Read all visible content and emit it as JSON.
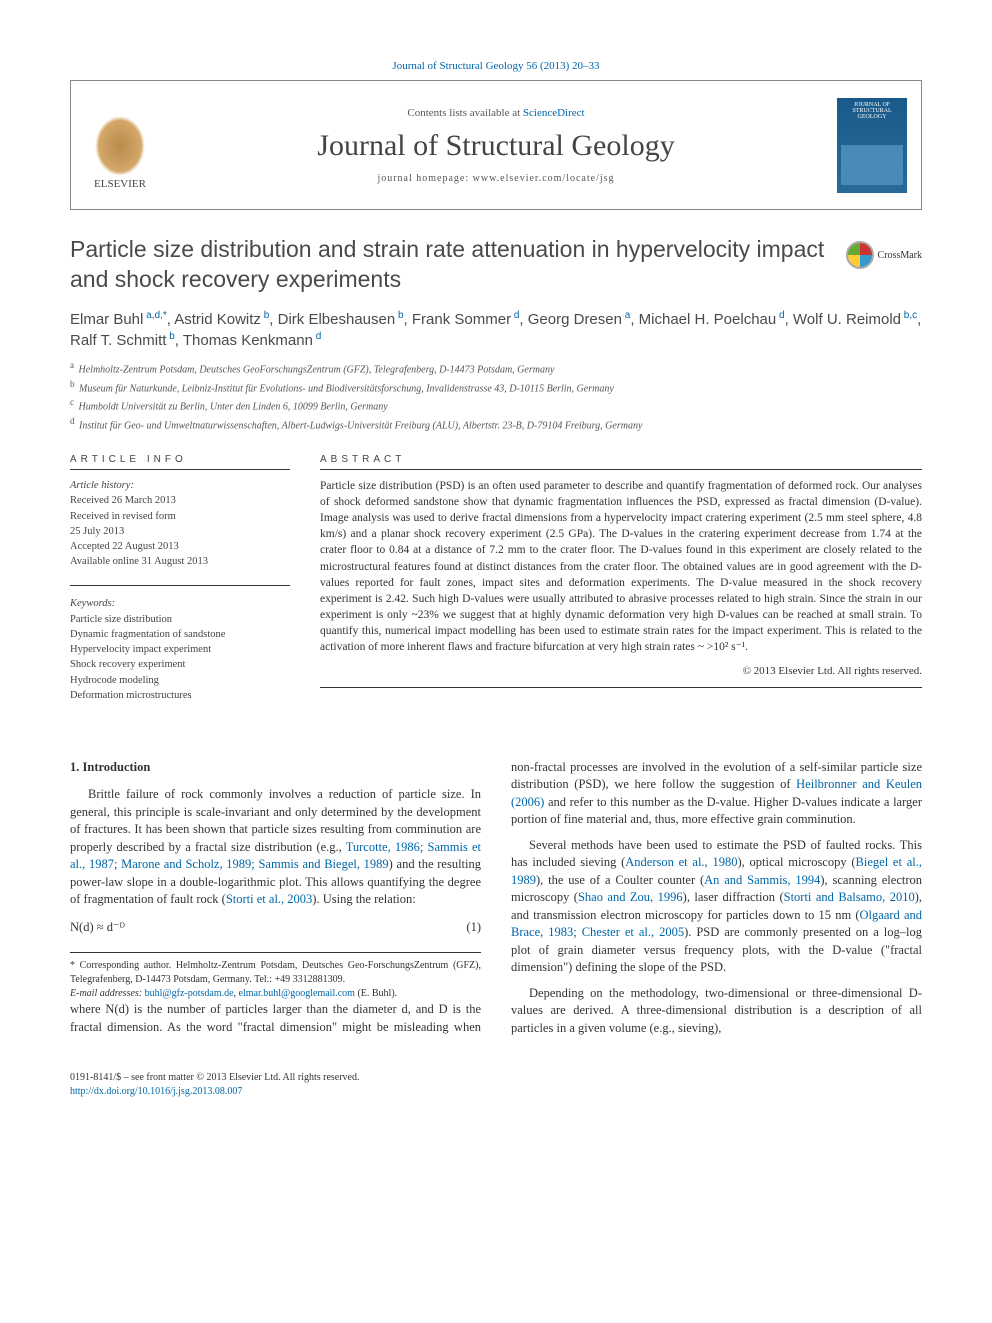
{
  "journal_ref": "Journal of Structural Geology 56 (2013) 20–33",
  "header": {
    "contents_prefix": "Contents lists available at ",
    "contents_link": "ScienceDirect",
    "journal_name": "Journal of Structural Geology",
    "homepage_prefix": "journal homepage: ",
    "homepage_url": "www.elsevier.com/locate/jsg",
    "publisher": "ELSEVIER",
    "cover_top": "JOURNAL OF STRUCTURAL GEOLOGY"
  },
  "crossmark_label": "CrossMark",
  "title": "Particle size distribution and strain rate attenuation in hypervelocity impact and shock recovery experiments",
  "authors": [
    {
      "name": "Elmar Buhl",
      "marks": "a,d,*"
    },
    {
      "name": "Astrid Kowitz",
      "marks": "b"
    },
    {
      "name": "Dirk Elbeshausen",
      "marks": "b"
    },
    {
      "name": "Frank Sommer",
      "marks": "d"
    },
    {
      "name": "Georg Dresen",
      "marks": "a"
    },
    {
      "name": "Michael H. Poelchau",
      "marks": "d"
    },
    {
      "name": "Wolf U. Reimold",
      "marks": "b,c"
    },
    {
      "name": "Ralf T. Schmitt",
      "marks": "b"
    },
    {
      "name": "Thomas Kenkmann",
      "marks": "d"
    }
  ],
  "affiliations": [
    {
      "mark": "a",
      "text": "Helmholtz-Zentrum Potsdam, Deutsches GeoForschungsZentrum (GFZ), Telegrafenberg, D-14473 Potsdam, Germany"
    },
    {
      "mark": "b",
      "text": "Museum für Naturkunde, Leibniz-Institut für Evolutions- und Biodiversitätsforschung, Invalidenstrasse 43, D-10115 Berlin, Germany"
    },
    {
      "mark": "c",
      "text": "Humboldt Universität zu Berlin, Unter den Linden 6, 10099 Berlin, Germany"
    },
    {
      "mark": "d",
      "text": "Institut für Geo- und Umweltnaturwissenschaften, Albert-Ludwigs-Universität Freiburg (ALU), Albertstr. 23-B, D-79104 Freiburg, Germany"
    }
  ],
  "article_info_label": "ARTICLE INFO",
  "abstract_label": "ABSTRACT",
  "history": {
    "heading": "Article history:",
    "received": "Received 26 March 2013",
    "revised1": "Received in revised form",
    "revised2": "25 July 2013",
    "accepted": "Accepted 22 August 2013",
    "online": "Available online 31 August 2013"
  },
  "keywords": {
    "heading": "Keywords:",
    "items": [
      "Particle size distribution",
      "Dynamic fragmentation of sandstone",
      "Hypervelocity impact experiment",
      "Shock recovery experiment",
      "Hydrocode modeling",
      "Deformation microstructures"
    ]
  },
  "abstract": "Particle size distribution (PSD) is an often used parameter to describe and quantify fragmentation of deformed rock. Our analyses of shock deformed sandstone show that dynamic fragmentation influences the PSD, expressed as fractal dimension (D-value). Image analysis was used to derive fractal dimensions from a hypervelocity impact cratering experiment (2.5 mm steel sphere, 4.8 km/s) and a planar shock recovery experiment (2.5 GPa). The D-values in the cratering experiment decrease from 1.74 at the crater floor to 0.84 at a distance of 7.2 mm to the crater floor. The D-values found in this experiment are closely related to the microstructural features found at distinct distances from the crater floor. The obtained values are in good agreement with the D-values reported for fault zones, impact sites and deformation experiments. The D-value measured in the shock recovery experiment is 2.42. Such high D-values were usually attributed to abrasive processes related to high strain. Since the strain in our experiment is only ~23% we suggest that at highly dynamic deformation very high D-values can be reached at small strain. To quantify this, numerical impact modelling has been used to estimate strain rates for the impact experiment. This is related to the activation of more inherent flaws and fracture bifurcation at very high strain rates ~ >10² s⁻¹.",
  "copyright": "© 2013 Elsevier Ltd. All rights reserved.",
  "body": {
    "heading": "1. Introduction",
    "p1_pre": "Brittle failure of rock commonly involves a reduction of particle size. In general, this principle is scale-invariant and only determined by the development of fractures. It has been shown that particle sizes resulting from comminution are properly described by a fractal size distribution (e.g., ",
    "p1_link1": "Turcotte, 1986; Sammis et al., 1987; Marone and Scholz, 1989; Sammis and Biegel, 1989",
    "p1_mid": ") and the resulting power-law slope in a double-logarithmic plot. This allows quantifying the degree of fragmentation of fault rock (",
    "p1_link2": "Storti et al., 2003",
    "p1_end": "). Using the relation:",
    "equation": "N(d) ≈ d⁻ᴰ",
    "equation_num": "(1)",
    "p2_pre": "where N(d) is the number of particles larger than the diameter d, and D is the fractal dimension. As the word \"fractal dimension\" might be misleading when non-fractal processes are involved in the evolution of a self-similar particle size distribution (PSD), we here follow the suggestion of ",
    "p2_link": "Heilbronner and Keulen (2006)",
    "p2_end": " and refer to this number as the D-value. Higher D-values indicate a larger portion of fine material and, thus, more effective grain comminution.",
    "p3_pre": "Several methods have been used to estimate the PSD of faulted rocks. This has included sieving (",
    "p3_l1": "Anderson et al., 1980",
    "p3_m1": "), optical microscopy (",
    "p3_l2": "Biegel et al., 1989",
    "p3_m2": "), the use of a Coulter counter (",
    "p3_l3": "An and Sammis, 1994",
    "p3_m3": "), scanning electron microscopy (",
    "p3_l4": "Shao and Zou, 1996",
    "p3_m4": "), laser diffraction (",
    "p3_l5": "Storti and Balsamo, 2010",
    "p3_m5": "), and transmission electron microscopy for particles down to 15 nm (",
    "p3_l6": "Olgaard and Brace, 1983; Chester et al., 2005",
    "p3_end": "). PSD are commonly presented on a log–log plot of grain diameter versus frequency plots, with the D-value (\"fractal dimension\") defining the slope of the PSD.",
    "p4": "Depending on the methodology, two-dimensional or three-dimensional D-values are derived. A three-dimensional distribution is a description of all particles in a given volume (e.g., sieving),"
  },
  "footnote": {
    "corr": "* Corresponding author. Helmholtz-Zentrum Potsdam, Deutsches Geo-ForschungsZentrum (GFZ), Telegrafenberg, D-14473 Potsdam, Germany. Tel.: +49 3312881309.",
    "email_label": "E-mail addresses: ",
    "email1": "buhl@gfz-potsdam.de",
    "email_sep": ", ",
    "email2": "elmar.buhl@googlemail.com",
    "email_end": " (E. Buhl)."
  },
  "footer": {
    "line1": "0191-8141/$ – see front matter © 2013 Elsevier Ltd. All rights reserved.",
    "doi": "http://dx.doi.org/10.1016/j.jsg.2013.08.007"
  }
}
